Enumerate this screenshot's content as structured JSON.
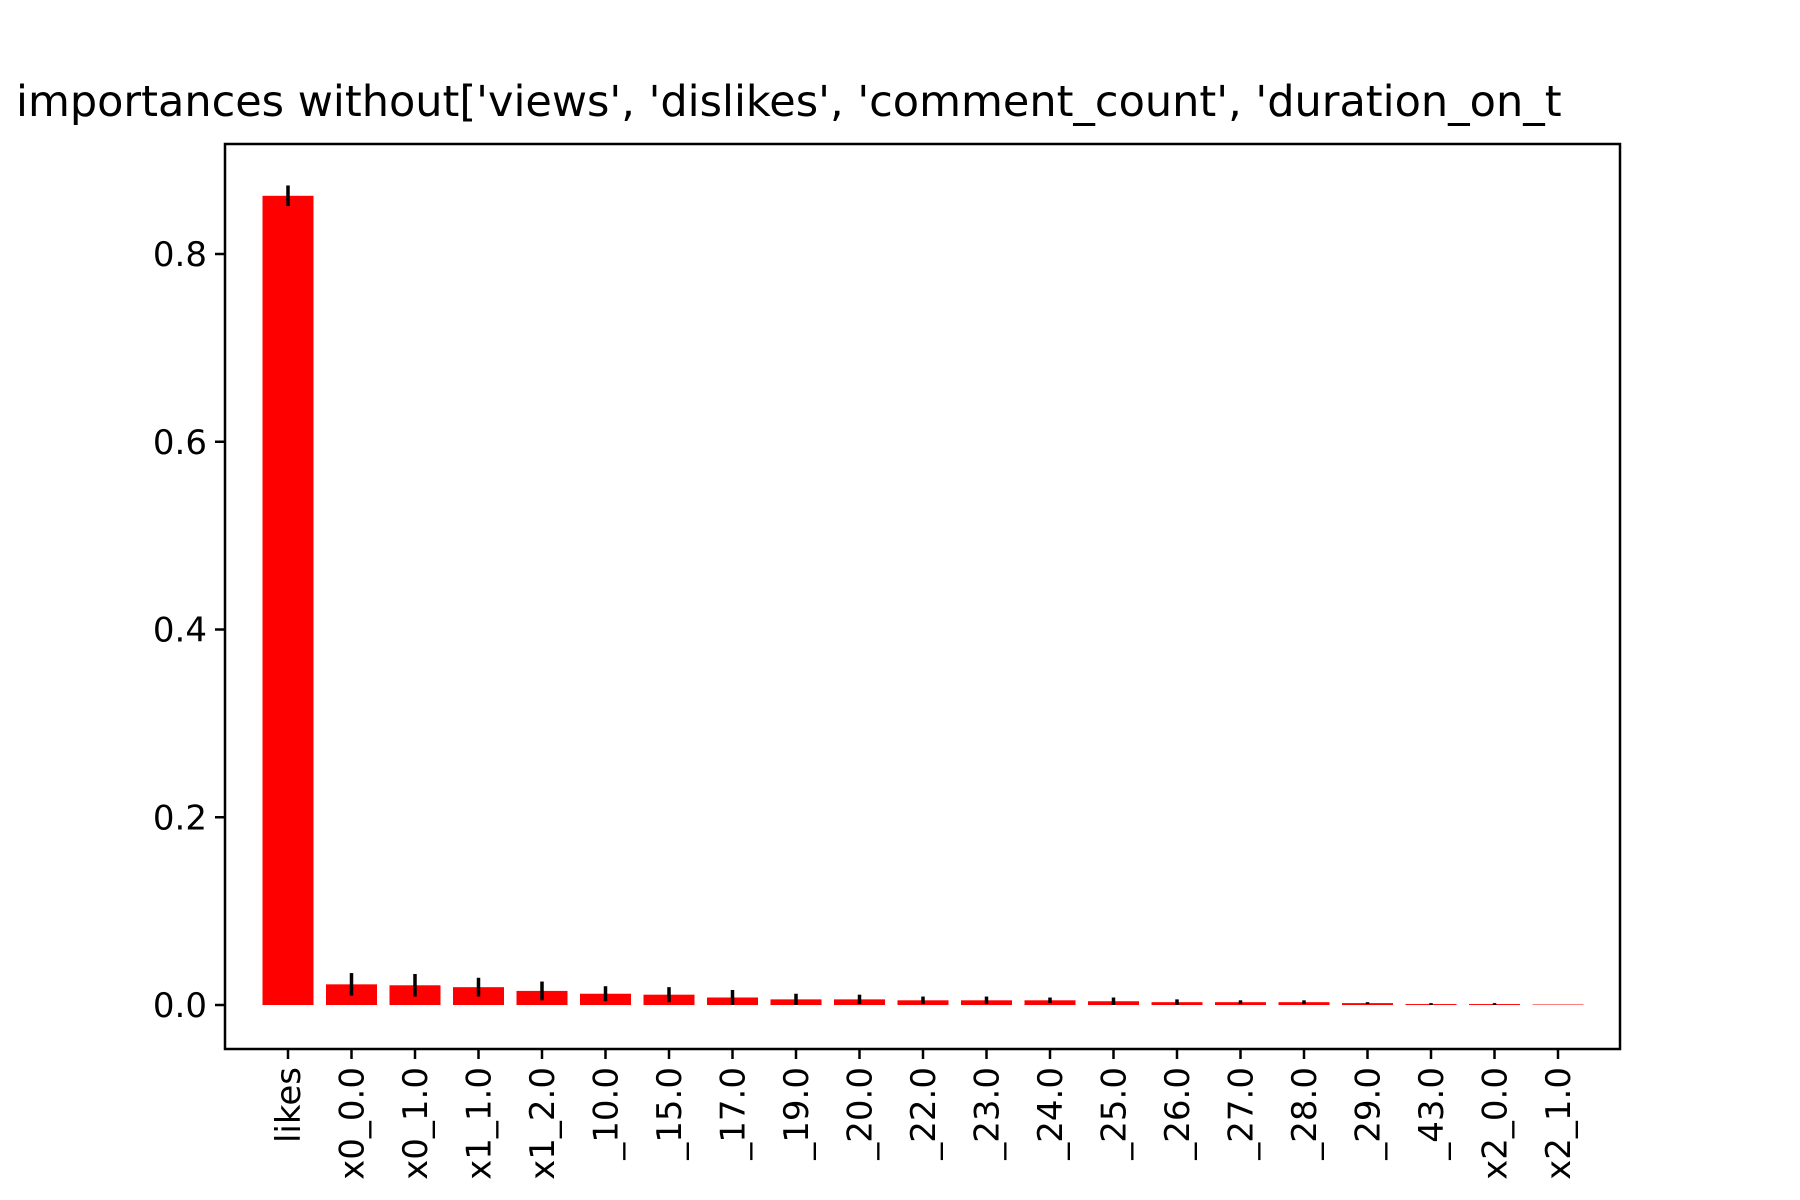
{
  "chart_data": {
    "type": "bar",
    "title": "importances without['views', 'dislikes', 'comment_count', 'duration_on_t",
    "xlabel": "",
    "ylabel": "",
    "ylim": [
      -0.05,
      0.915
    ],
    "yticks": [
      "0.0",
      "0.2",
      "0.4",
      "0.6",
      "0.8"
    ],
    "ytick_values": [
      0.0,
      0.2,
      0.4,
      0.6,
      0.8
    ],
    "categories": [
      "likes",
      "x0_0.0",
      "x0_1.0",
      "x1_1.0",
      "x1_2.0",
      "_10.0",
      "_15.0",
      "_17.0",
      "_19.0",
      "_20.0",
      "_22.0",
      "_23.0",
      "_24.0",
      "_25.0",
      "_26.0",
      "_27.0",
      "_28.0",
      "_29.0",
      "_43.0",
      "x2_0.0",
      "x2_1.0"
    ],
    "values": [
      0.862,
      0.022,
      0.021,
      0.019,
      0.015,
      0.012,
      0.011,
      0.008,
      0.006,
      0.006,
      0.005,
      0.005,
      0.005,
      0.004,
      0.003,
      0.003,
      0.003,
      0.002,
      0.001,
      0.001,
      0.0
    ],
    "errors": [
      0.011,
      0.012,
      0.012,
      0.01,
      0.01,
      0.008,
      0.008,
      0.008,
      0.006,
      0.005,
      0.004,
      0.004,
      0.003,
      0.004,
      0.003,
      0.002,
      0.002,
      0.001,
      0.001,
      0.001,
      0.0
    ],
    "colors": {
      "bar": "#ff0000",
      "error": "#000000",
      "axis": "#000000"
    },
    "grid": false,
    "legend": "none"
  }
}
